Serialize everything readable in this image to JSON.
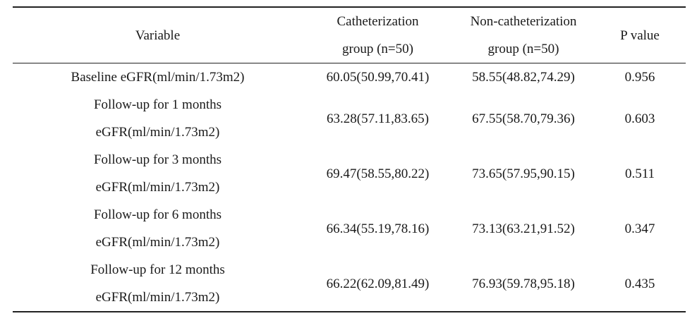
{
  "table": {
    "headers": {
      "variable": "Variable",
      "catheterization": [
        "Catheterization",
        "group (n=50)"
      ],
      "non_catheterization": [
        "Non-catheterization",
        "group (n=50)"
      ],
      "p_value": "P value"
    },
    "rows": [
      {
        "variable": [
          "Baseline eGFR(ml/min/1.73m2)"
        ],
        "catheterization": "60.05(50.99,70.41)",
        "non_catheterization": "58.55(48.82,74.29)",
        "p_value": "0.956"
      },
      {
        "variable": [
          "Follow-up for 1 months",
          "eGFR(ml/min/1.73m2)"
        ],
        "catheterization": "63.28(57.11,83.65)",
        "non_catheterization": "67.55(58.70,79.36)",
        "p_value": "0.603"
      },
      {
        "variable": [
          "Follow-up for 3 months",
          "eGFR(ml/min/1.73m2)"
        ],
        "catheterization": "69.47(58.55,80.22)",
        "non_catheterization": "73.65(57.95,90.15)",
        "p_value": "0.511"
      },
      {
        "variable": [
          "Follow-up for 6 months",
          "eGFR(ml/min/1.73m2)"
        ],
        "catheterization": "66.34(55.19,78.16)",
        "non_catheterization": "73.13(63.21,91.52)",
        "p_value": "0.347"
      },
      {
        "variable": [
          "Follow-up for 12 months",
          "eGFR(ml/min/1.73m2)"
        ],
        "catheterization": "66.22(62.09,81.49)",
        "non_catheterization": "76.93(59.78,95.18)",
        "p_value": "0.435"
      }
    ]
  }
}
